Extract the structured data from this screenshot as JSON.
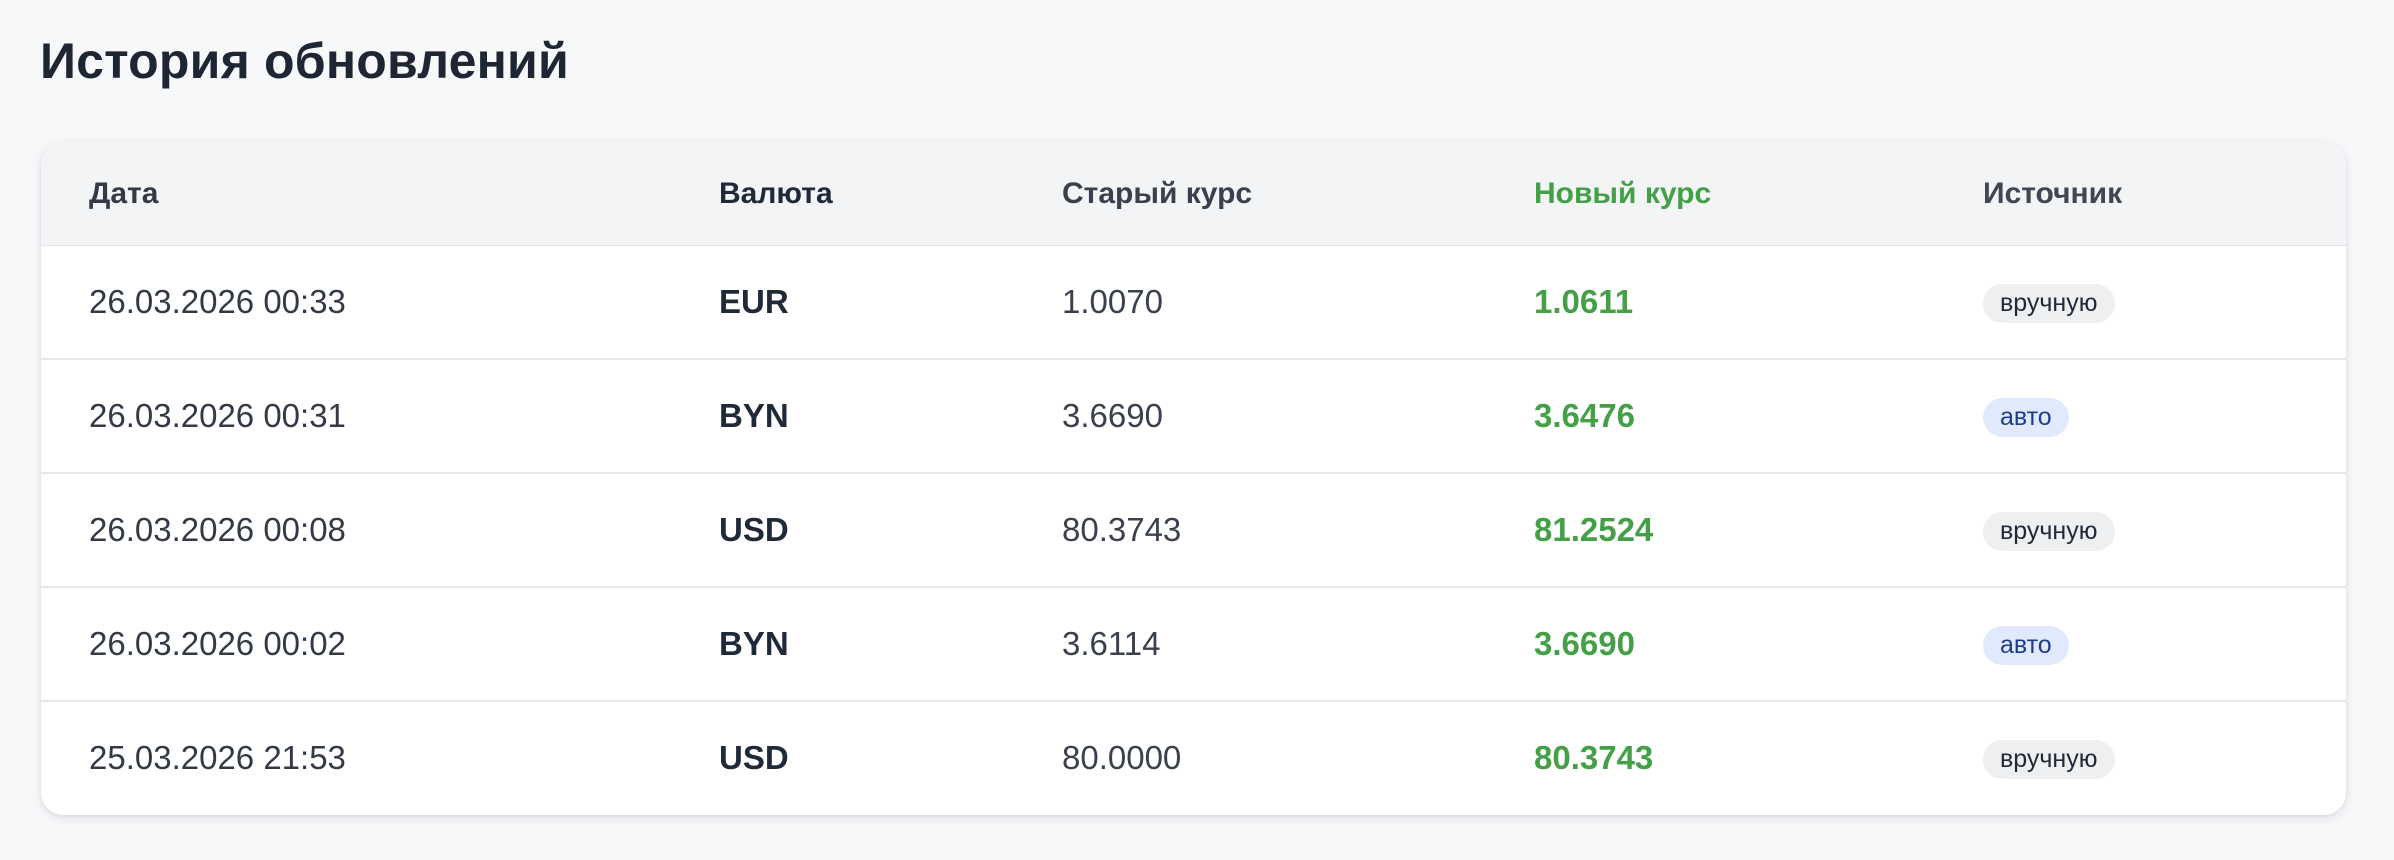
{
  "page": {
    "title": "История обновлений"
  },
  "table": {
    "columns": [
      "Дата",
      "Валюта",
      "Старый курс",
      "Новый курс",
      "Источник"
    ],
    "rows": [
      {
        "date": "26.03.2026 00:33",
        "currency": "EUR",
        "old_rate": "1.0070",
        "new_rate": "1.0611",
        "source": "вручную",
        "source_type": "manual"
      },
      {
        "date": "26.03.2026 00:31",
        "currency": "BYN",
        "old_rate": "3.6690",
        "new_rate": "3.6476",
        "source": "авто",
        "source_type": "auto"
      },
      {
        "date": "26.03.2026 00:08",
        "currency": "USD",
        "old_rate": "80.3743",
        "new_rate": "81.2524",
        "source": "вручную",
        "source_type": "manual"
      },
      {
        "date": "26.03.2026 00:02",
        "currency": "BYN",
        "old_rate": "3.6114",
        "new_rate": "3.6690",
        "source": "авто",
        "source_type": "auto"
      },
      {
        "date": "25.03.2026 21:53",
        "currency": "USD",
        "old_rate": "80.0000",
        "new_rate": "80.3743",
        "source": "вручную",
        "source_type": "manual"
      }
    ]
  },
  "colors": {
    "new_rate": "#43a047",
    "badge_manual_bg": "#eeeff1",
    "badge_auto_bg": "#e1eafc",
    "badge_auto_text": "#1f3c8a"
  }
}
